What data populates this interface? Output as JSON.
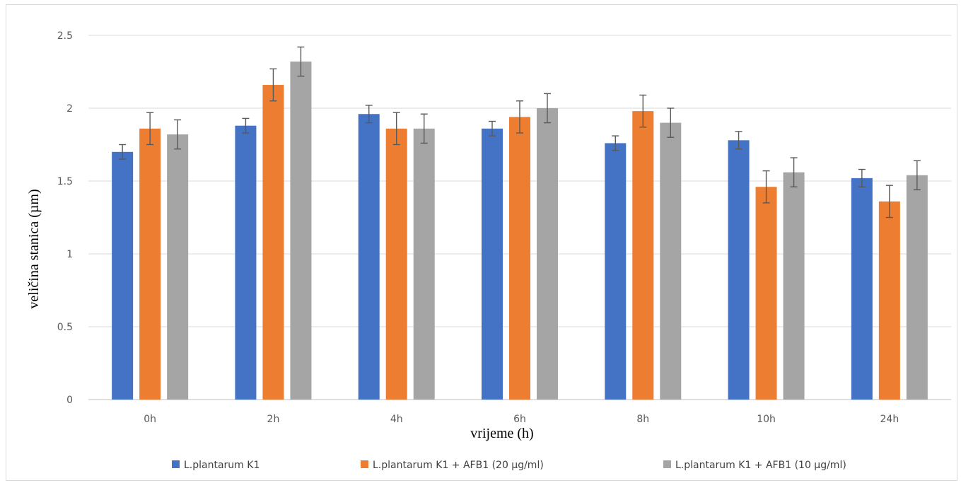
{
  "chart_data": {
    "type": "bar",
    "title": "",
    "xlabel": "vrijeme (h)",
    "ylabel": "veličina stanica (µm)",
    "ylim": [
      0,
      2.5
    ],
    "yticks": [
      "0",
      "0.5",
      "1",
      "1.5",
      "2",
      "2.5"
    ],
    "grid": true,
    "legend_position": "bottom",
    "categories": [
      "0h",
      "2h",
      "4h",
      "6h",
      "8h",
      "10h",
      "24h"
    ],
    "series": [
      {
        "name": "L.plantarum K1",
        "color": "#4472c4",
        "values": [
          1.7,
          1.88,
          1.96,
          1.86,
          1.76,
          1.78,
          1.52
        ],
        "errors": [
          0.05,
          0.05,
          0.06,
          0.05,
          0.05,
          0.06,
          0.06
        ]
      },
      {
        "name": "L.plantarum K1 +  AFB1 (20 µg/ml)",
        "color": "#ed7d31",
        "values": [
          1.86,
          2.16,
          1.86,
          1.94,
          1.98,
          1.46,
          1.36
        ],
        "errors": [
          0.11,
          0.11,
          0.11,
          0.11,
          0.11,
          0.11,
          0.11
        ]
      },
      {
        "name": "L.plantarum K1 + AFB1 (10 µg/ml)",
        "color": "#a5a5a5",
        "values": [
          1.82,
          2.32,
          1.86,
          2.0,
          1.9,
          1.56,
          1.54
        ],
        "errors": [
          0.1,
          0.1,
          0.1,
          0.1,
          0.1,
          0.1,
          0.1
        ]
      }
    ]
  }
}
